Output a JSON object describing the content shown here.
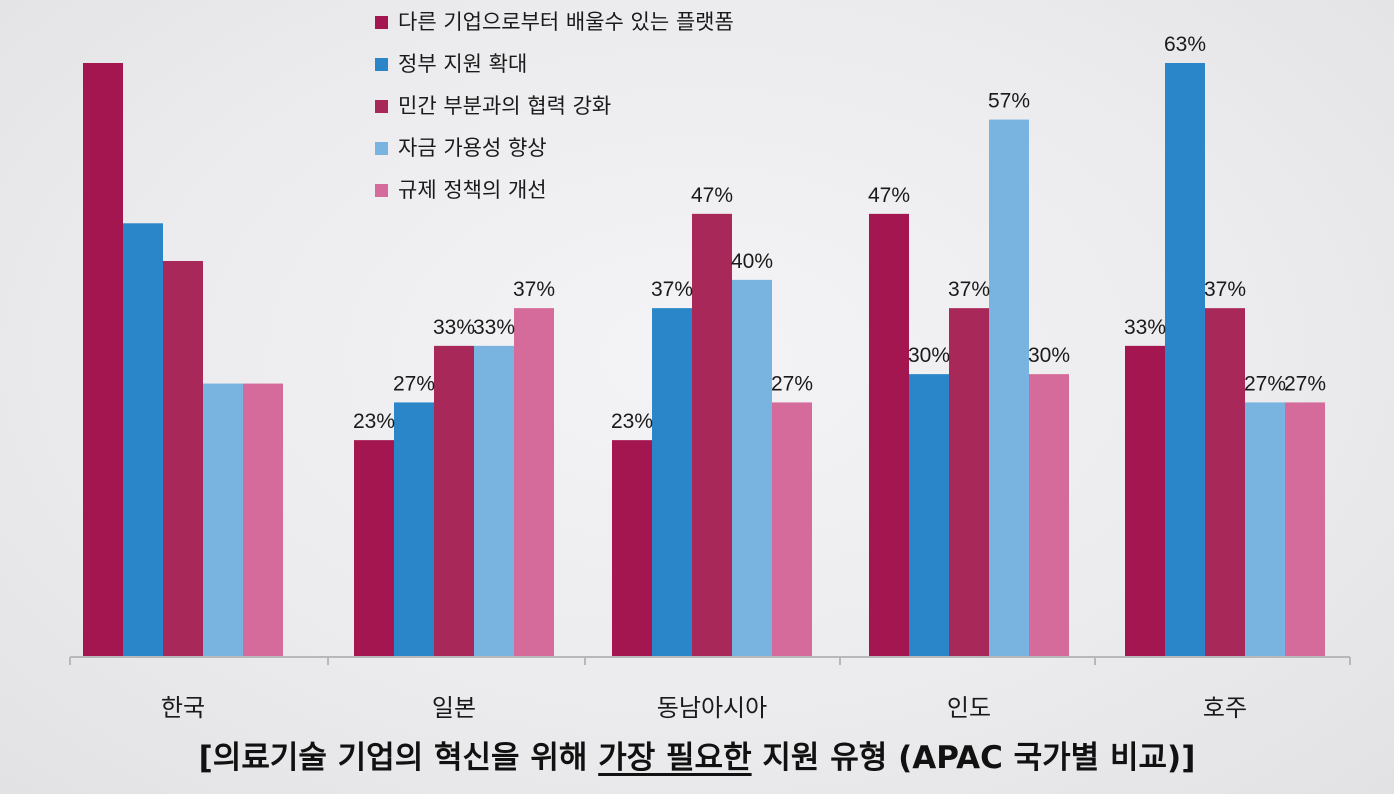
{
  "caption": {
    "before": "[의료기술 기업의 혁신을 위해 ",
    "emphasis": "가장 필요한",
    "after": " 지원 유형 (APAC 국가별 비교)]"
  },
  "chart_data": {
    "type": "bar",
    "title": "",
    "xlabel": "",
    "ylabel": "",
    "legend_position": "top-center",
    "ylim": [
      0,
      70
    ],
    "categories": [
      "한국",
      "일본",
      "동남아시아",
      "인도",
      "호주"
    ],
    "series": [
      {
        "name": "다른 기업으로부터 배울수 있는 플랫폼",
        "color": "#a3164f",
        "values": [
          63,
          23,
          23,
          47,
          33
        ],
        "labels": [
          "",
          "23%",
          "23%",
          "47%",
          "33%"
        ]
      },
      {
        "name": "정부 지원 확대",
        "color": "#2a86c8",
        "values": [
          46,
          27,
          37,
          30,
          63
        ],
        "labels": [
          "",
          "27%",
          "37%",
          "30%",
          "63%"
        ]
      },
      {
        "name": "민간 부분과의 협력 강화",
        "color": "#a8285a",
        "values": [
          42,
          33,
          47,
          37,
          37
        ],
        "labels": [
          "",
          "33%",
          "47%",
          "37%",
          "37%"
        ]
      },
      {
        "name": "자금 가용성 향상",
        "color": "#78b4df",
        "values": [
          29,
          33,
          40,
          57,
          27
        ],
        "labels": [
          "",
          "33%",
          "40%",
          "57%",
          "27%"
        ]
      },
      {
        "name": "규제 정책의 개선",
        "color": "#d56b9a",
        "values": [
          29,
          37,
          27,
          30,
          27
        ],
        "labels": [
          "",
          "37%",
          "27%",
          "30%",
          "27%"
        ]
      }
    ]
  }
}
